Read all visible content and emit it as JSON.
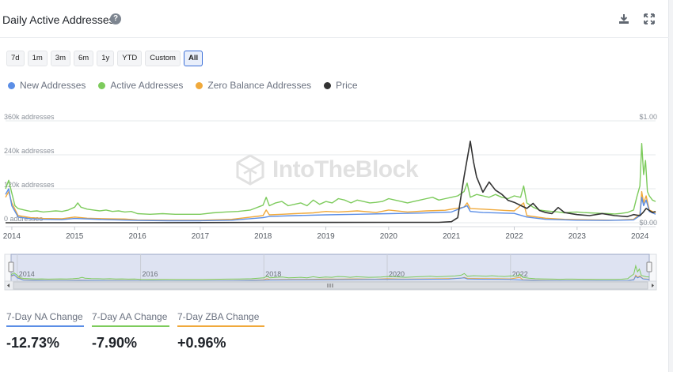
{
  "header": {
    "title": "Daily Active Addresses",
    "help_icon": "question-circle-icon",
    "download_icon": "download-icon",
    "fullscreen_icon": "expand-icon"
  },
  "ranges": [
    "7d",
    "1m",
    "3m",
    "6m",
    "1y",
    "YTD",
    "Custom",
    "All"
  ],
  "active_range": "All",
  "legend": [
    {
      "name": "New Addresses",
      "color": "#5b8ee6"
    },
    {
      "name": "Active Addresses",
      "color": "#7dcb5c"
    },
    {
      "name": "Zero Balance Addresses",
      "color": "#f0a93b"
    },
    {
      "name": "Price",
      "color": "#333333"
    }
  ],
  "watermark": "IntoTheBlock",
  "stats": [
    {
      "label": "7-Day NA Change",
      "value": "-12.73%",
      "color": "#5b8ee6"
    },
    {
      "label": "7-Day AA Change",
      "value": "-7.90%",
      "color": "#7dcb5c"
    },
    {
      "label": "7-Day ZBA Change",
      "value": "+0.96%",
      "color": "#f0a93b"
    }
  ],
  "chart_data": {
    "type": "line",
    "title": "Daily Active Addresses",
    "y_left": {
      "ticks": [
        0,
        120000,
        240000,
        360000
      ],
      "tick_labels": [
        "0 addresses",
        "120k addresses",
        "240k addresses",
        "360k addresses"
      ],
      "ylim": [
        0,
        360000
      ]
    },
    "y_right": {
      "tick_labels": [
        "$0.00",
        "$1.00"
      ],
      "ylim": [
        0,
        1.0
      ]
    },
    "x_ticks": [
      "2014",
      "2015",
      "2016",
      "2017",
      "2018",
      "2019",
      "2020",
      "2021",
      "2022",
      "2023",
      "2024"
    ],
    "x_range": [
      2013.9,
      2024.25
    ],
    "grid": true,
    "legend_position": "top-left",
    "series": [
      {
        "name": "Active Addresses",
        "color": "#7dcb5c",
        "x": [
          2013.9,
          2013.95,
          2014.0,
          2014.05,
          2014.1,
          2014.2,
          2014.3,
          2014.4,
          2014.5,
          2014.6,
          2014.7,
          2014.8,
          2014.9,
          2015.0,
          2015.05,
          2015.1,
          2015.2,
          2015.3,
          2015.4,
          2015.5,
          2015.6,
          2015.7,
          2015.8,
          2015.9,
          2016.0,
          2016.2,
          2016.4,
          2016.6,
          2016.8,
          2017.0,
          2017.2,
          2017.4,
          2017.6,
          2017.8,
          2018.0,
          2018.05,
          2018.1,
          2018.2,
          2018.3,
          2018.4,
          2018.5,
          2018.6,
          2018.7,
          2018.8,
          2018.9,
          2019.0,
          2019.1,
          2019.2,
          2019.3,
          2019.4,
          2019.5,
          2019.6,
          2019.7,
          2019.8,
          2019.9,
          2020.0,
          2020.1,
          2020.2,
          2020.3,
          2020.4,
          2020.5,
          2020.6,
          2020.7,
          2020.8,
          2020.9,
          2021.0,
          2021.1,
          2021.2,
          2021.25,
          2021.3,
          2021.4,
          2021.5,
          2021.6,
          2021.7,
          2021.8,
          2021.9,
          2022.0,
          2022.1,
          2022.15,
          2022.2,
          2022.3,
          2022.4,
          2022.5,
          2022.6,
          2022.7,
          2022.8,
          2022.9,
          2023.0,
          2023.1,
          2023.2,
          2023.3,
          2023.4,
          2023.5,
          2023.6,
          2023.7,
          2023.8,
          2023.9,
          2023.95,
          2024.0,
          2024.03,
          2024.06,
          2024.09,
          2024.12,
          2024.15,
          2024.2,
          2024.25
        ],
        "values": [
          120000,
          150000,
          105000,
          60000,
          50000,
          45000,
          40000,
          42000,
          38000,
          40000,
          42000,
          40000,
          45000,
          55000,
          70000,
          55000,
          48000,
          45000,
          42000,
          45000,
          40000,
          42000,
          38000,
          40000,
          32000,
          30000,
          32000,
          30000,
          30000,
          30000,
          35000,
          38000,
          40000,
          45000,
          62000,
          90000,
          60000,
          70000,
          75000,
          60000,
          65000,
          70000,
          60000,
          80000,
          65000,
          75000,
          70000,
          85000,
          80000,
          70000,
          80000,
          75000,
          70000,
          72000,
          75000,
          85000,
          80000,
          75000,
          70000,
          75000,
          80000,
          85000,
          90000,
          80000,
          85000,
          90000,
          95000,
          110000,
          140000,
          90000,
          100000,
          95000,
          90000,
          100000,
          90000,
          85000,
          95000,
          90000,
          130000,
          70000,
          55000,
          45000,
          42000,
          40000,
          38000,
          35000,
          37000,
          38000,
          36000,
          35000,
          34000,
          33000,
          32000,
          31000,
          33000,
          36000,
          45000,
          90000,
          130000,
          280000,
          170000,
          220000,
          110000,
          95000,
          80000,
          75000
        ]
      },
      {
        "name": "Zero Balance Addresses",
        "color": "#f0a93b",
        "x": [
          2013.9,
          2013.95,
          2014.0,
          2014.1,
          2014.3,
          2014.5,
          2014.8,
          2015.0,
          2015.2,
          2015.5,
          2015.8,
          2016.0,
          2016.5,
          2017.0,
          2017.5,
          2018.0,
          2018.05,
          2018.1,
          2018.3,
          2018.5,
          2018.8,
          2019.0,
          2019.2,
          2019.5,
          2019.8,
          2020.0,
          2020.3,
          2020.6,
          2020.9,
          2021.0,
          2021.2,
          2021.25,
          2021.3,
          2021.5,
          2021.8,
          2022.0,
          2022.15,
          2022.2,
          2022.5,
          2022.8,
          2023.0,
          2023.3,
          2023.6,
          2023.9,
          2024.0,
          2024.03,
          2024.06,
          2024.1,
          2024.15,
          2024.25
        ],
        "values": [
          90000,
          110000,
          70000,
          25000,
          18000,
          15000,
          14000,
          20000,
          16000,
          14000,
          13000,
          10000,
          9000,
          9000,
          12000,
          25000,
          45000,
          28000,
          30000,
          32000,
          35000,
          40000,
          38000,
          42000,
          36000,
          45000,
          38000,
          42000,
          44000,
          48000,
          55000,
          70000,
          50000,
          48000,
          44000,
          42000,
          70000,
          25000,
          16000,
          12000,
          11000,
          10000,
          9000,
          12000,
          30000,
          110000,
          70000,
          95000,
          45000,
          35000
        ]
      },
      {
        "name": "New Addresses",
        "color": "#5b8ee6",
        "x": [
          2013.9,
          2013.95,
          2014.0,
          2014.1,
          2014.3,
          2014.5,
          2014.8,
          2015.0,
          2015.5,
          2016.0,
          2016.5,
          2017.0,
          2017.5,
          2018.0,
          2018.1,
          2018.5,
          2019.0,
          2019.5,
          2020.0,
          2020.5,
          2021.0,
          2021.25,
          2021.3,
          2021.5,
          2022.0,
          2022.2,
          2022.5,
          2023.0,
          2023.5,
          2023.9,
          2024.0,
          2024.03,
          2024.06,
          2024.1,
          2024.15,
          2024.25
        ],
        "values": [
          100000,
          120000,
          60000,
          20000,
          14000,
          12000,
          11000,
          15000,
          11000,
          8000,
          7000,
          7000,
          9000,
          18000,
          22000,
          25000,
          28000,
          30000,
          32000,
          34000,
          38000,
          60000,
          40000,
          36000,
          33000,
          20000,
          12000,
          9000,
          8000,
          10000,
          25000,
          90000,
          60000,
          80000,
          40000,
          30000
        ]
      },
      {
        "name": "Price",
        "color": "#333333",
        "axis": "right",
        "x": [
          2013.9,
          2016.0,
          2018.0,
          2019.0,
          2020.0,
          2020.8,
          2021.0,
          2021.1,
          2021.2,
          2021.3,
          2021.35,
          2021.4,
          2021.5,
          2021.6,
          2021.7,
          2021.8,
          2021.9,
          2022.0,
          2022.1,
          2022.2,
          2022.3,
          2022.4,
          2022.5,
          2022.6,
          2022.7,
          2022.8,
          2022.9,
          2023.0,
          2023.2,
          2023.4,
          2023.6,
          2023.8,
          2023.9,
          2024.0,
          2024.05,
          2024.1,
          2024.15,
          2024.2,
          2024.25
        ],
        "values": [
          0.0,
          0.0,
          0.003,
          0.003,
          0.004,
          0.004,
          0.01,
          0.05,
          0.45,
          0.8,
          0.6,
          0.45,
          0.3,
          0.4,
          0.32,
          0.28,
          0.22,
          0.2,
          0.17,
          0.14,
          0.19,
          0.12,
          0.1,
          0.09,
          0.15,
          0.1,
          0.09,
          0.08,
          0.07,
          0.09,
          0.07,
          0.06,
          0.08,
          0.07,
          0.1,
          0.14,
          0.12,
          0.1,
          0.11
        ]
      }
    ]
  },
  "navigator": {
    "x_ticks": [
      "2014",
      "2016",
      "2018",
      "2020",
      "2022"
    ],
    "scroll_grip_icon": "grip-lines-icon",
    "left_arrow_icon": "arrow-left-icon",
    "right_arrow_icon": "arrow-right-icon"
  }
}
